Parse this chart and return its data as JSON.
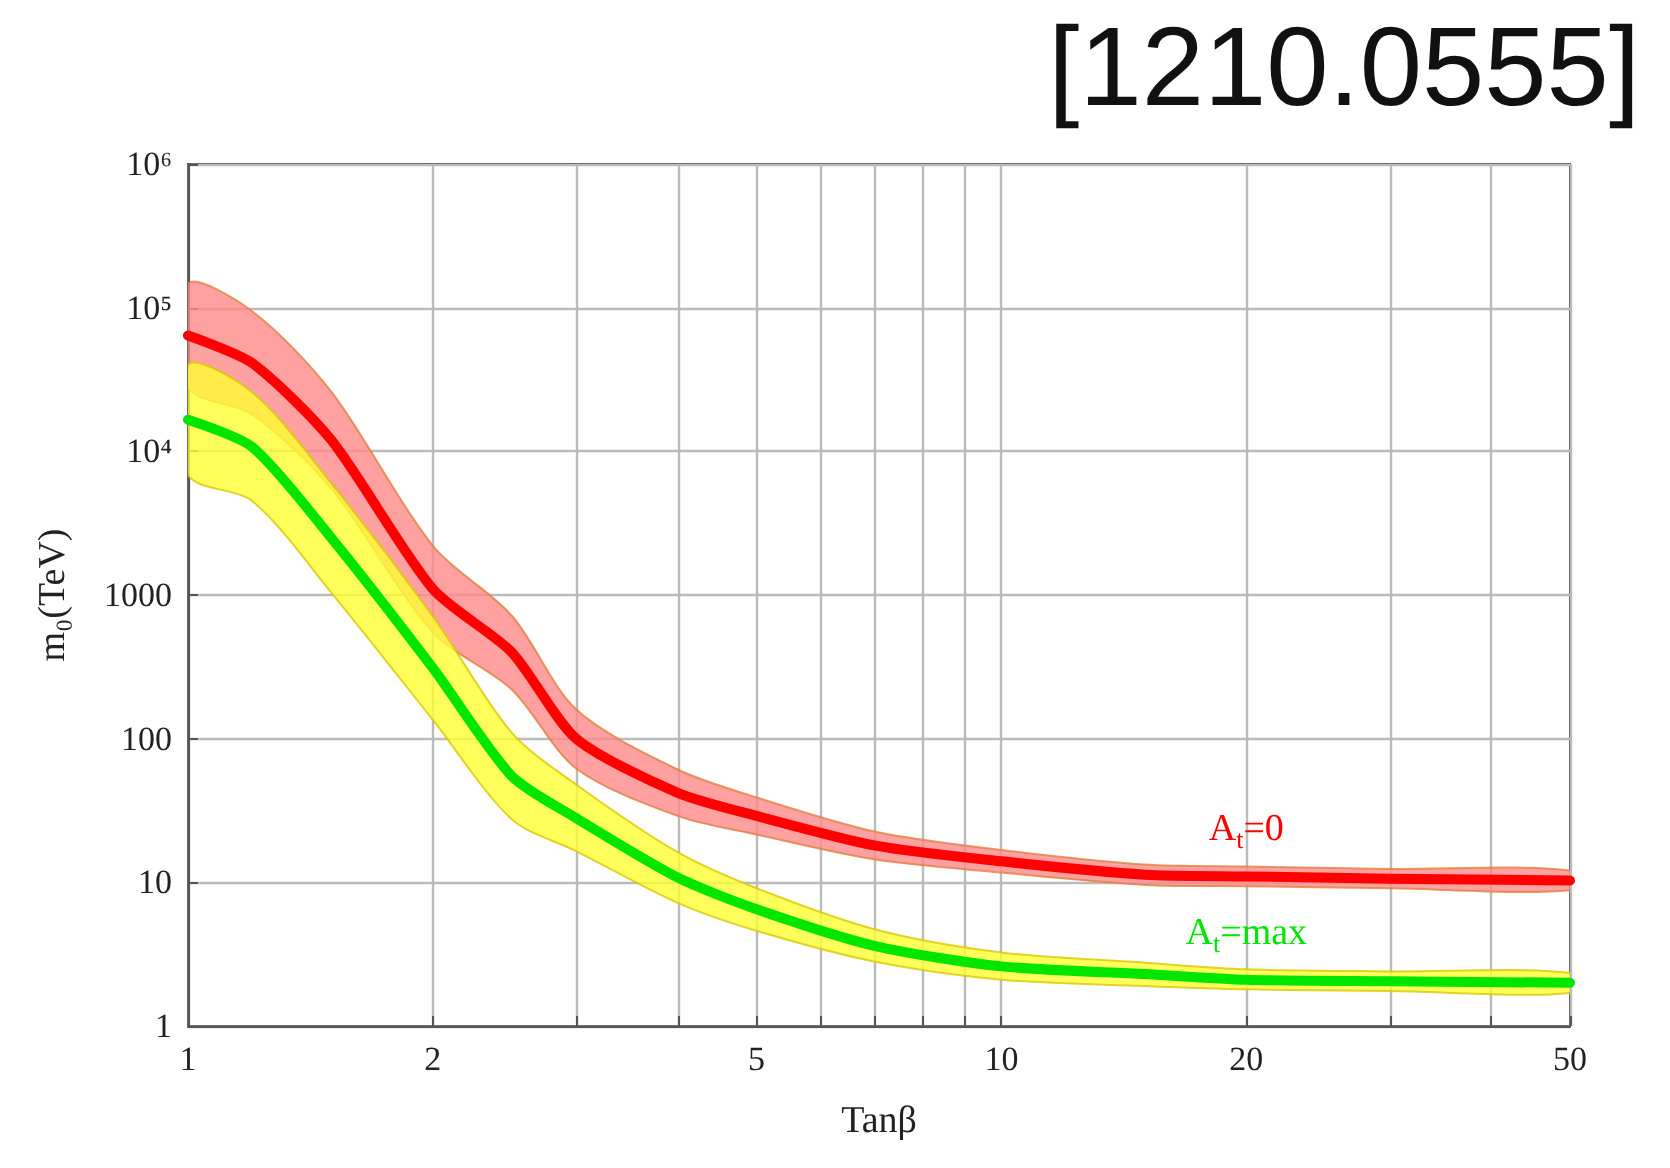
{
  "chart_data": {
    "type": "line",
    "title": "[1210.0555]",
    "xlabel": "Tanβ",
    "ylabel": "m₀(TeV)",
    "log": "xy",
    "grid": true,
    "marker": "none",
    "line_style": "solid",
    "legend": false,
    "x": [
      1,
      1.2,
      1.5,
      2,
      2.5,
      3,
      4,
      5,
      7,
      10,
      15,
      20,
      30,
      50
    ],
    "xlim": [
      1,
      50
    ],
    "xticks": [
      1,
      2,
      {
        "value": 3,
        "label": null
      },
      {
        "value": 4,
        "label": null
      },
      5,
      {
        "value": 6,
        "label": null
      },
      {
        "value": 7,
        "label": null
      },
      {
        "value": 8,
        "label": null
      },
      {
        "value": 9,
        "label": null
      },
      10,
      20,
      {
        "value": 30,
        "label": null
      },
      {
        "value": 40,
        "label": null
      },
      50
    ],
    "ylim": [
      1,
      1000000
    ],
    "yticks": [
      1,
      10,
      100,
      1000,
      {
        "value": 10000,
        "label": "10⁴"
      },
      {
        "value": 100000,
        "label": "10⁵"
      },
      {
        "value": 1000000,
        "label": "10⁶"
      }
    ],
    "series": [
      {
        "name": "A$_{t}$=0",
        "color": "#ff0000",
        "values": [
          64000,
          41000,
          12000,
          1100,
          400,
          100,
          42,
          29,
          18,
          14,
          11.3,
          11,
          10.6,
          10.3
        ],
        "upper": [
          147000,
          94000,
          26000,
          2200,
          720,
          160,
          61,
          39,
          22.5,
          16.8,
          13.3,
          12.9,
          12.4,
          12.1
        ],
        "lower": [
          28000,
          18000,
          5500,
          550,
          220,
          62,
          29,
          21.5,
          14.4,
          11.7,
          9.6,
          9.4,
          9.1,
          8.8
        ]
      },
      {
        "name": "A$_{t}$=max",
        "color": "#00e600",
        "values": [
          16600,
          10700,
          2500,
          310,
          55,
          28,
          10.8,
          6.5,
          3.6,
          2.6,
          2.3,
          2.1,
          2.05,
          2.0
        ],
        "upper": [
          40000,
          25700,
          6000,
          710,
          110,
          48,
          16.2,
          9.1,
          4.7,
          3.25,
          2.76,
          2.48,
          2.4,
          2.34
        ],
        "lower": [
          6900,
          4500,
          1040,
          135,
          27.5,
          16.5,
          7.2,
          4.6,
          2.8,
          2.1,
          1.9,
          1.8,
          1.75,
          1.7
        ]
      }
    ]
  }
}
